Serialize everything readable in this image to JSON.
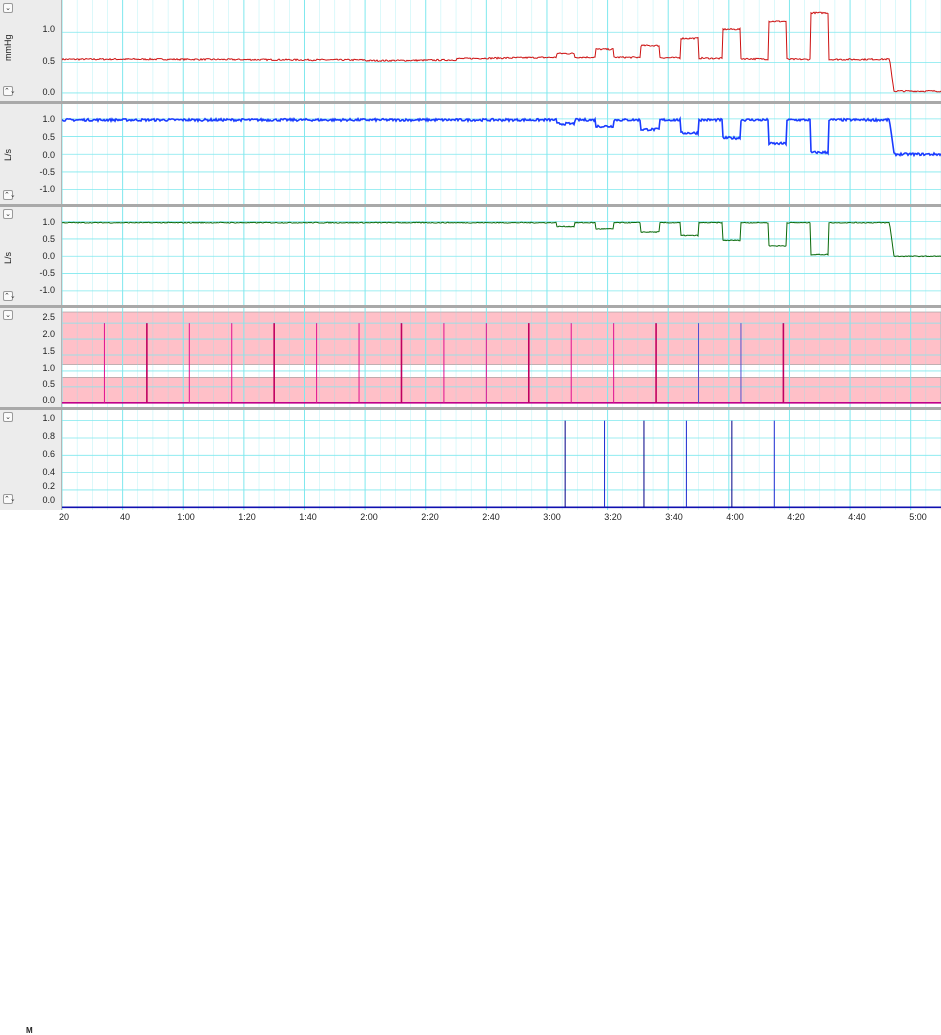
{
  "channels": [
    {
      "unit": "mmHg",
      "ticks": [
        "1.0",
        "0.5",
        "0.0"
      ],
      "tick_values": [
        1.0,
        0.5,
        0.0
      ],
      "ylim": [
        -0.1,
        1.4
      ],
      "color": "#cc1111",
      "trace": "pressure"
    },
    {
      "unit": "L/s",
      "ticks": [
        "1.0",
        "0.5",
        "0.0",
        "-0.5",
        "-1.0"
      ],
      "tick_values": [
        1.0,
        0.5,
        0.0,
        -0.5,
        -1.0
      ],
      "ylim": [
        -1.35,
        1.25
      ],
      "color": "#1a3cff",
      "trace": "flow"
    },
    {
      "unit": "L/s",
      "ticks": [
        "1.0",
        "0.5",
        "0.0",
        "-0.5",
        "-1.0"
      ],
      "tick_values": [
        1.0,
        0.5,
        0.0,
        -0.5,
        -1.0
      ],
      "ylim": [
        -1.35,
        1.25
      ],
      "color": "#0a6a0a",
      "trace": "flow"
    },
    {
      "unit": "",
      "ticks": [
        "2.5",
        "2.0",
        "1.5",
        "1.0",
        "0.5",
        "0.0"
      ],
      "tick_values": [
        2.5,
        2.0,
        1.5,
        1.0,
        0.5,
        0.0
      ],
      "ylim": [
        -0.1,
        2.85
      ],
      "color": "#e01090",
      "trace": "spikes"
    },
    {
      "unit": "",
      "ticks": [
        "1.0",
        "0.8",
        "0.6",
        "0.4",
        "0.2",
        "0.0"
      ],
      "tick_values": [
        1.0,
        0.8,
        0.6,
        0.4,
        0.2,
        0.0
      ],
      "ylim": [
        -0.02,
        1.1
      ],
      "color": "#000088",
      "trace": "events"
    }
  ],
  "x_axis": {
    "range_seconds": [
      20,
      310
    ],
    "ticks": [
      "20",
      "40",
      "1:00",
      "1:20",
      "1:40",
      "2:00",
      "2:20",
      "2:40",
      "3:00",
      "3:20",
      "3:40",
      "4:00",
      "4:20",
      "4:40",
      "5:00"
    ],
    "tick_seconds": [
      20,
      40,
      60,
      80,
      100,
      120,
      140,
      160,
      180,
      200,
      220,
      240,
      260,
      280,
      300
    ]
  },
  "corner_label": "M",
  "controls": {
    "collapse_glyph": "⌄",
    "scale_glyph": "⌃⌄"
  },
  "grid_color": "#7fe8ee",
  "shade_color": "#ffc0c8",
  "chart_data": {
    "type": "line",
    "x_unit": "time (s)",
    "channels": [
      {
        "ylabel": "mmHg",
        "baseline": 0.55,
        "steps": [
          {
            "start": 183,
            "end": 189,
            "value": 0.65
          },
          {
            "start": 196,
            "end": 202,
            "value": 0.72
          },
          {
            "start": 211,
            "end": 217,
            "value": 0.78
          },
          {
            "start": 224,
            "end": 230,
            "value": 0.9
          },
          {
            "start": 238,
            "end": 244,
            "value": 1.05
          },
          {
            "start": 253,
            "end": 259,
            "value": 1.18
          },
          {
            "start": 267,
            "end": 273,
            "value": 1.32
          }
        ],
        "drop_at": 293,
        "final": 0.03
      },
      {
        "ylabel": "L/s",
        "baseline": 0.97,
        "steps": [
          {
            "start": 183,
            "end": 189,
            "value": 0.86
          },
          {
            "start": 196,
            "end": 202,
            "value": 0.79
          },
          {
            "start": 211,
            "end": 217,
            "value": 0.7
          },
          {
            "start": 224,
            "end": 230,
            "value": 0.6
          },
          {
            "start": 238,
            "end": 244,
            "value": 0.46
          },
          {
            "start": 253,
            "end": 259,
            "value": 0.3
          },
          {
            "start": 267,
            "end": 273,
            "value": 0.05
          }
        ],
        "drop_at": 293,
        "final": 0.0
      },
      {
        "ylabel": "L/s",
        "baseline": 0.97,
        "steps": [
          {
            "start": 183,
            "end": 189,
            "value": 0.86
          },
          {
            "start": 196,
            "end": 202,
            "value": 0.79
          },
          {
            "start": 211,
            "end": 217,
            "value": 0.7
          },
          {
            "start": 224,
            "end": 230,
            "value": 0.6
          },
          {
            "start": 238,
            "end": 244,
            "value": 0.46
          },
          {
            "start": 253,
            "end": 259,
            "value": 0.3
          },
          {
            "start": 267,
            "end": 273,
            "value": 0.05
          }
        ],
        "drop_at": 293,
        "final": 0.0
      },
      {
        "ylabel": "",
        "shaded_bands": [
          [
            0.0,
            0.8
          ],
          [
            1.2,
            2.85
          ]
        ],
        "spike_times": [
          34,
          48,
          62,
          76,
          90,
          104,
          118,
          132,
          146,
          160,
          174,
          188,
          202,
          216,
          230,
          244,
          258
        ],
        "spike_heights": [
          2.5,
          2.5,
          2.5,
          2.5,
          2.5,
          2.5,
          2.5,
          2.5,
          2.5,
          2.5,
          2.5,
          2.5,
          2.5,
          2.5,
          2.5,
          2.5,
          2.5
        ]
      },
      {
        "ylabel": "",
        "event_times": [
          186,
          199,
          212,
          226,
          241,
          255
        ],
        "event_height": 1.0
      }
    ]
  }
}
